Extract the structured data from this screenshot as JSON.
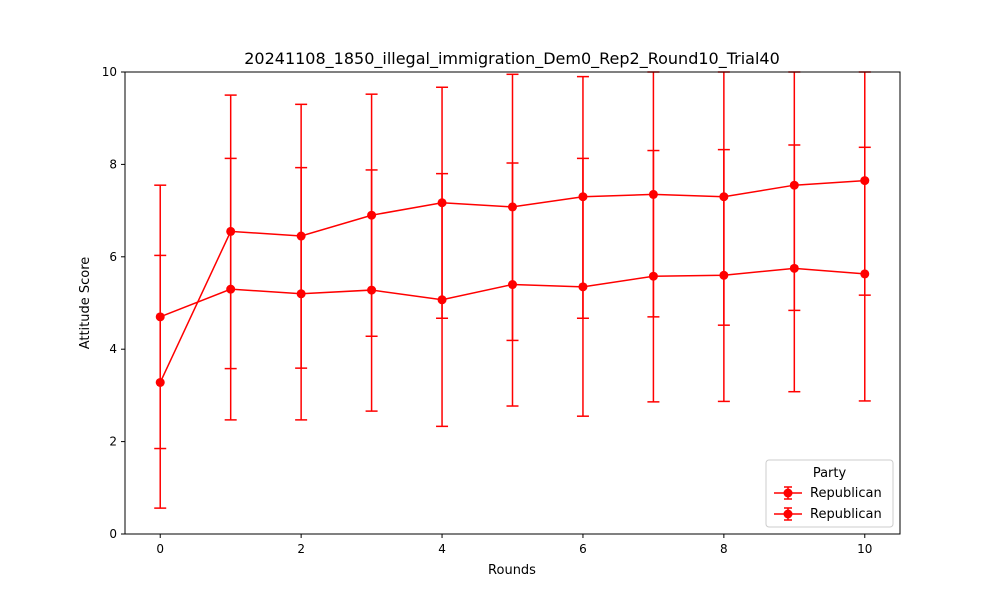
{
  "chart_data": {
    "type": "line",
    "title": "20241108_1850_illegal_immigration_Dem0_Rep2_Round10_Trial40",
    "xlabel": "Rounds",
    "ylabel": "Attitude Score",
    "xlim": [
      -0.5,
      10.5
    ],
    "ylim": [
      0,
      10
    ],
    "xticks": [
      0,
      2,
      4,
      6,
      8,
      10
    ],
    "yticks": [
      0,
      2,
      4,
      6,
      8,
      10
    ],
    "grid": false,
    "legend": {
      "title": "Party",
      "placement": "lower-right"
    },
    "series": [
      {
        "name": "Republican",
        "color": "#ff0000",
        "x": [
          0,
          1,
          2,
          3,
          4,
          5,
          6,
          7,
          8,
          9,
          10
        ],
        "y": [
          4.7,
          5.3,
          5.2,
          5.28,
          5.07,
          5.4,
          5.35,
          5.58,
          5.6,
          5.75,
          5.63
        ],
        "err_low": [
          1.85,
          2.47,
          2.47,
          2.66,
          2.33,
          2.77,
          2.55,
          2.86,
          2.87,
          3.08,
          2.88
        ],
        "err_high": [
          7.55,
          8.13,
          7.93,
          7.88,
          7.8,
          8.03,
          8.13,
          8.3,
          8.32,
          8.42,
          8.37
        ]
      },
      {
        "name": "Republican",
        "color": "#ff0000",
        "x": [
          0,
          1,
          2,
          3,
          4,
          5,
          6,
          7,
          8,
          9,
          10
        ],
        "y": [
          3.28,
          6.55,
          6.45,
          6.9,
          7.17,
          7.08,
          7.3,
          7.35,
          7.3,
          7.55,
          7.65
        ],
        "err_low": [
          0.56,
          3.58,
          3.59,
          4.28,
          4.67,
          4.19,
          4.67,
          4.7,
          4.52,
          4.84,
          5.17
        ],
        "err_high": [
          6.03,
          9.5,
          9.3,
          9.52,
          9.67,
          9.95,
          9.9,
          10.0,
          10.0,
          10.0,
          10.0
        ]
      }
    ]
  }
}
